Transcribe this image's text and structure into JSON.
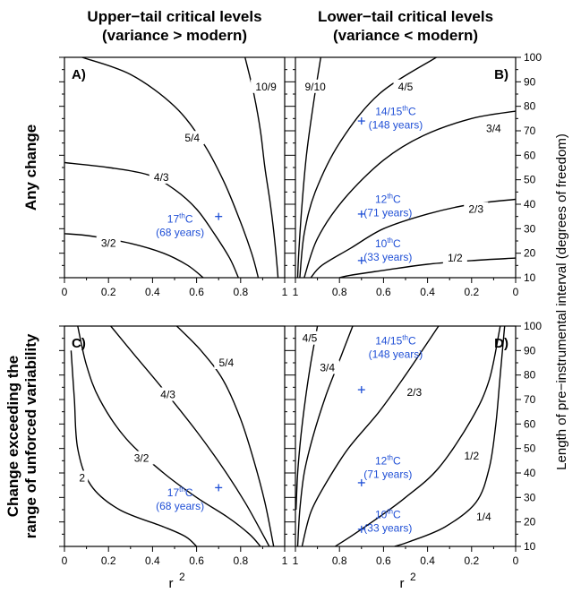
{
  "chart_data": {
    "type": "contour",
    "column_titles": [
      [
        "Upper−tail critical levels",
        "(variance > modern)"
      ],
      [
        "Lower−tail critical levels",
        "(variance < modern)"
      ]
    ],
    "row_titles": [
      [
        "Any change"
      ],
      [
        "Change exceeding the",
        "range of unforced variability"
      ]
    ],
    "xlabel": "r",
    "xlabel_sup": "2",
    "ylabel": "Length of pre−instrumental interval (degrees of freedom)",
    "y_ticks": [
      "10",
      "20",
      "30",
      "40",
      "50",
      "60",
      "70",
      "80",
      "90",
      "100"
    ],
    "x_ticks_left": [
      "0",
      "0.2",
      "0.4",
      "0.6",
      "0.8",
      "1"
    ],
    "x_ticks_right": [
      "1",
      "0.8",
      "0.6",
      "0.4",
      "0.2",
      "0"
    ],
    "xlim_left": [
      0,
      1
    ],
    "xlim_right": [
      1,
      0
    ],
    "ylim": [
      10,
      100
    ],
    "panels": [
      {
        "id": "A",
        "label": "A)",
        "col": 0,
        "row": 0,
        "contours": [
          {
            "label": "10/9",
            "lx": 0.915,
            "ly": 88,
            "points": [
              [
                0.82,
                100
              ],
              [
                0.86,
                85
              ],
              [
                0.89,
                70
              ],
              [
                0.91,
                55
              ],
              [
                0.935,
                40
              ],
              [
                0.955,
                25
              ],
              [
                0.97,
                10
              ]
            ]
          },
          {
            "label": "5/4",
            "lx": 0.58,
            "ly": 67,
            "points": [
              [
                0.08,
                100
              ],
              [
                0.3,
                93
              ],
              [
                0.5,
                80
              ],
              [
                0.63,
                65
              ],
              [
                0.72,
                50
              ],
              [
                0.79,
                35
              ],
              [
                0.85,
                20
              ],
              [
                0.88,
                10
              ]
            ]
          },
          {
            "label": "4/3",
            "lx": 0.44,
            "ly": 51,
            "points": [
              [
                0,
                57
              ],
              [
                0.2,
                55
              ],
              [
                0.38,
                52
              ],
              [
                0.5,
                46
              ],
              [
                0.6,
                38
              ],
              [
                0.68,
                28
              ],
              [
                0.75,
                18
              ],
              [
                0.79,
                10
              ]
            ]
          },
          {
            "label": "3/2",
            "lx": 0.2,
            "ly": 24,
            "points": [
              [
                0,
                28
              ],
              [
                0.12,
                27
              ],
              [
                0.3,
                24
              ],
              [
                0.45,
                20
              ],
              [
                0.56,
                15
              ],
              [
                0.63,
                10
              ]
            ]
          }
        ],
        "markers": [
          {
            "x": 0.7,
            "y": 35,
            "label": [
              "17",
              "th",
              "C",
              "(68 years)"
            ],
            "lx": 0.525,
            "ly": 31
          }
        ]
      },
      {
        "id": "B",
        "label": "B)",
        "col": 1,
        "row": 0,
        "contours": [
          {
            "label": "9/10",
            "lx": 0.91,
            "ly": 88,
            "points": [
              [
                0.885,
                100
              ],
              [
                0.92,
                80
              ],
              [
                0.95,
                60
              ],
              [
                0.97,
                40
              ],
              [
                0.985,
                20
              ],
              [
                0.99,
                10
              ]
            ]
          },
          {
            "label": "4/5",
            "lx": 0.5,
            "ly": 88,
            "points": [
              [
                0.36,
                100
              ],
              [
                0.62,
                85
              ],
              [
                0.8,
                65
              ],
              [
                0.91,
                45
              ],
              [
                0.96,
                28
              ],
              [
                0.98,
                10
              ]
            ]
          },
          {
            "label": "3/4",
            "lx": 0.1,
            "ly": 71,
            "points": [
              [
                0,
                78
              ],
              [
                0.2,
                75
              ],
              [
                0.42,
                68
              ],
              [
                0.6,
                58
              ],
              [
                0.78,
                42
              ],
              [
                0.9,
                26
              ],
              [
                0.96,
                10
              ]
            ]
          },
          {
            "label": "2/3",
            "lx": 0.18,
            "ly": 38,
            "points": [
              [
                0,
                42
              ],
              [
                0.2,
                40
              ],
              [
                0.4,
                36
              ],
              [
                0.6,
                30
              ],
              [
                0.75,
                22
              ],
              [
                0.88,
                15
              ],
              [
                0.93,
                10
              ]
            ]
          },
          {
            "label": "1/2",
            "lx": 0.275,
            "ly": 18,
            "points": [
              [
                0,
                18
              ],
              [
                0.2,
                17
              ],
              [
                0.4,
                15.5
              ],
              [
                0.6,
                13
              ],
              [
                0.75,
                11
              ],
              [
                0.8,
                10
              ]
            ]
          }
        ],
        "markers": [
          {
            "x": 0.7,
            "y": 74,
            "label": [
              "14/15",
              "th",
              "C",
              "(148 years)"
            ],
            "lx": 0.545,
            "ly": 75
          },
          {
            "x": 0.7,
            "y": 36,
            "label": [
              "12",
              "th",
              "C",
              "(71 years)"
            ],
            "lx": 0.58,
            "ly": 39
          },
          {
            "x": 0.7,
            "y": 17,
            "label": [
              "10",
              "th",
              "C",
              "(33 years)"
            ],
            "lx": 0.58,
            "ly": 21
          }
        ]
      },
      {
        "id": "C",
        "label": "C)",
        "col": 0,
        "row": 1,
        "contours": [
          {
            "label": "5/4",
            "lx": 0.735,
            "ly": 85,
            "points": [
              [
                0.51,
                100
              ],
              [
                0.62,
                90
              ],
              [
                0.72,
                78
              ],
              [
                0.8,
                62
              ],
              [
                0.86,
                45
              ],
              [
                0.91,
                28
              ],
              [
                0.95,
                10
              ]
            ]
          },
          {
            "label": "4/3",
            "lx": 0.47,
            "ly": 72,
            "points": [
              [
                0.21,
                100
              ],
              [
                0.32,
                88
              ],
              [
                0.45,
                74
              ],
              [
                0.6,
                57
              ],
              [
                0.72,
                42
              ],
              [
                0.82,
                28
              ],
              [
                0.9,
                15
              ],
              [
                0.93,
                10
              ]
            ]
          },
          {
            "label": "3/2",
            "lx": 0.35,
            "ly": 46,
            "points": [
              [
                0.06,
                100
              ],
              [
                0.1,
                84
              ],
              [
                0.16,
                70
              ],
              [
                0.28,
                54
              ],
              [
                0.45,
                40
              ],
              [
                0.6,
                30
              ],
              [
                0.74,
                22
              ],
              [
                0.84,
                15
              ],
              [
                0.89,
                10
              ]
            ]
          },
          {
            "label": "2",
            "lx": 0.08,
            "ly": 38,
            "points": [
              [
                0.03,
                90
              ],
              [
                0.045,
                70
              ],
              [
                0.06,
                50
              ],
              [
                0.12,
                35
              ],
              [
                0.25,
                25
              ],
              [
                0.45,
                18
              ],
              [
                0.55,
                14
              ],
              [
                0.6,
                10
              ]
            ]
          }
        ],
        "markers": [
          {
            "x": 0.7,
            "y": 34,
            "label": [
              "17",
              "th",
              "C",
              "(68 years)"
            ],
            "lx": 0.525,
            "ly": 29
          }
        ]
      },
      {
        "id": "D",
        "label": "D)",
        "col": 1,
        "row": 1,
        "contours": [
          {
            "label": "4/5",
            "lx": 0.935,
            "ly": 95,
            "points": [
              [
                0.9,
                100
              ],
              [
                0.93,
                85
              ],
              [
                0.955,
                70
              ],
              [
                0.975,
                55
              ],
              [
                0.99,
                40
              ],
              [
                0.997,
                25
              ]
            ]
          },
          {
            "label": "3/4",
            "lx": 0.855,
            "ly": 83,
            "points": [
              [
                0.74,
                100
              ],
              [
                0.8,
                86
              ],
              [
                0.86,
                72
              ],
              [
                0.92,
                55
              ],
              [
                0.96,
                40
              ],
              [
                0.98,
                25
              ],
              [
                0.99,
                10
              ]
            ]
          },
          {
            "label": "2/3",
            "lx": 0.46,
            "ly": 73,
            "points": [
              [
                0.35,
                100
              ],
              [
                0.5,
                80
              ],
              [
                0.62,
                65
              ],
              [
                0.76,
                50
              ],
              [
                0.86,
                36
              ],
              [
                0.93,
                24
              ],
              [
                0.97,
                10
              ]
            ]
          },
          {
            "label": "1/2",
            "lx": 0.2,
            "ly": 47,
            "points": [
              [
                0.07,
                100
              ],
              [
                0.12,
                78
              ],
              [
                0.2,
                62
              ],
              [
                0.35,
                42
              ],
              [
                0.5,
                30
              ],
              [
                0.62,
                22
              ],
              [
                0.75,
                14
              ],
              [
                0.82,
                10
              ]
            ]
          },
          {
            "label": "1/4",
            "lx": 0.145,
            "ly": 22,
            "points": [
              [
                0.05,
                100
              ],
              [
                0.07,
                80
              ],
              [
                0.09,
                60
              ],
              [
                0.12,
                42
              ],
              [
                0.18,
                28
              ],
              [
                0.32,
                18
              ],
              [
                0.48,
                12
              ],
              [
                0.55,
                10
              ]
            ]
          }
        ],
        "markers": [
          {
            "x": 0.7,
            "y": 74,
            "label": [
              "14/15",
              "th",
              "C",
              "(148 years)"
            ],
            "lx": 0.545,
            "ly": 91
          },
          {
            "x": 0.7,
            "y": 36,
            "label": [
              "12",
              "th",
              "C",
              "(71 years)"
            ],
            "lx": 0.58,
            "ly": 42
          },
          {
            "x": 0.7,
            "y": 17,
            "label": [
              "10",
              "th",
              "C",
              "(33 years)"
            ],
            "lx": 0.58,
            "ly": 20
          }
        ]
      }
    ]
  }
}
